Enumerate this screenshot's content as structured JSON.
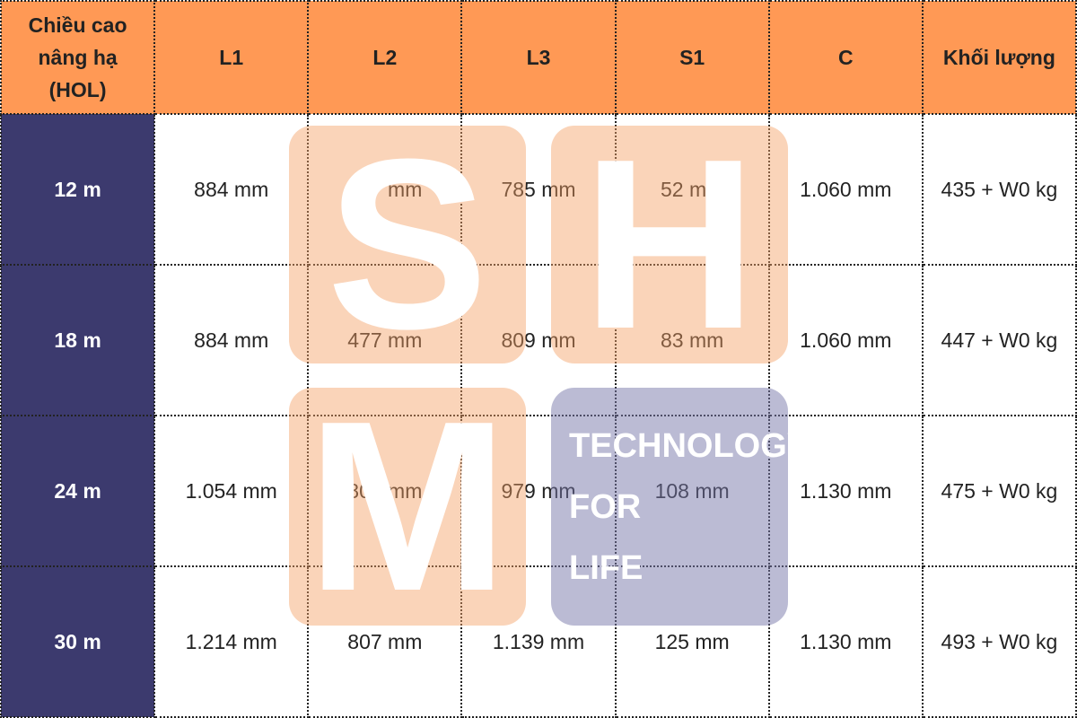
{
  "table": {
    "header": [
      "Chiều cao nâng hạ (HOL)",
      "L1",
      "L2",
      "L3",
      "S1",
      "C",
      "Khối lượng"
    ],
    "rows": [
      [
        "12 m",
        "884 mm",
        "477 mm",
        "785 mm",
        "52 mm",
        "1.060 mm",
        "435 + W0 kg"
      ],
      [
        "18 m",
        "884 mm",
        "477 mm",
        "809 mm",
        "83 mm",
        "1.060 mm",
        "447 + W0 kg"
      ],
      [
        "24 m",
        "1.054 mm",
        "807 mm",
        "979 mm",
        "108 mm",
        "1.130 mm",
        "475 + W0 kg"
      ],
      [
        "30 m",
        "1.214 mm",
        "807 mm",
        "1.139 mm",
        "125 mm",
        "1.130 mm",
        "493 + W0 kg"
      ]
    ]
  },
  "watermark": {
    "letters": [
      "S",
      "H",
      "M"
    ],
    "tagline": [
      "TECHNOLOGY",
      "FOR",
      "LIFE"
    ]
  }
}
